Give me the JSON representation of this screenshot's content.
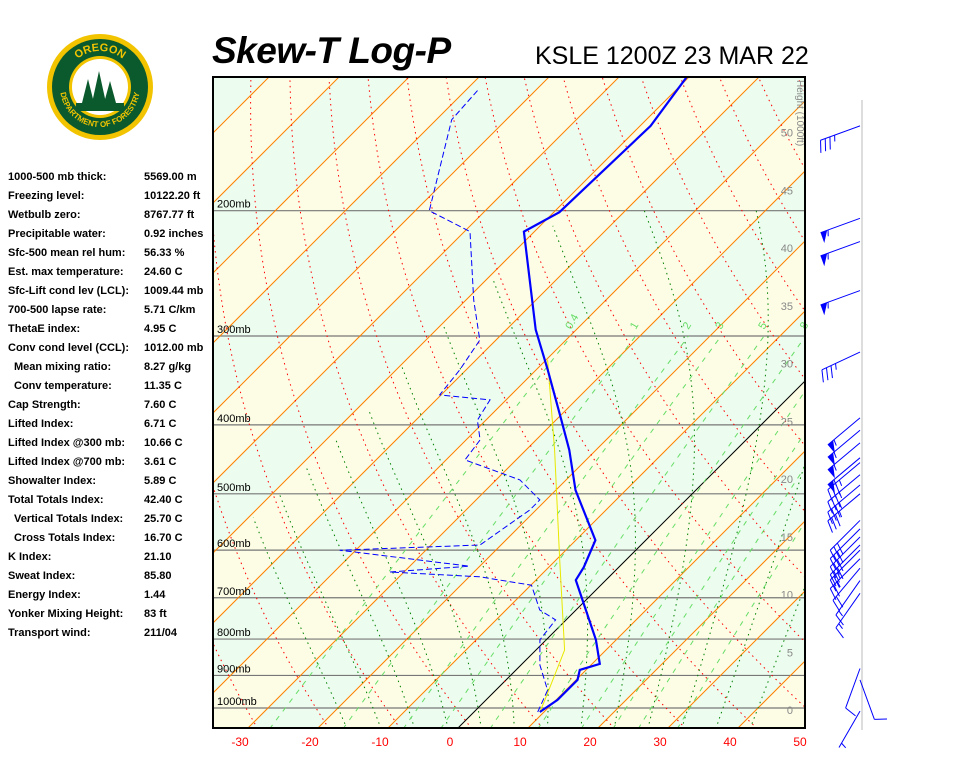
{
  "header": {
    "title": "Skew-T Log-P",
    "station": "KSLE 1200Z 23 MAR 22"
  },
  "logo": {
    "top_text": "OREGON",
    "bottom_text": "DEPARTMENT OF FORESTRY"
  },
  "stats": [
    {
      "label": "1000-500 mb thick:",
      "value": "5569.00 m"
    },
    {
      "label": "Freezing level:",
      "value": "10122.20 ft"
    },
    {
      "label": "Wetbulb zero:",
      "value": "8767.77 ft"
    },
    {
      "label": "Precipitable water:",
      "value": "0.92 inches"
    },
    {
      "label": "Sfc-500 mean rel hum:",
      "value": "56.33 %"
    },
    {
      "label": "Est. max temperature:",
      "value": "24.60 C"
    },
    {
      "label": "Sfc-Lift cond lev (LCL):",
      "value": "1009.44 mb"
    },
    {
      "label": "700-500 lapse rate:",
      "value": "5.71 C/km"
    },
    {
      "label": "ThetaE index:",
      "value": "4.95 C"
    },
    {
      "label": "Conv cond level (CCL):",
      "value": "1012.00 mb"
    },
    {
      "label": "Mean mixing ratio:",
      "value": "8.27 g/kg",
      "indent": true
    },
    {
      "label": "Conv temperature:",
      "value": "11.35 C",
      "indent": true
    },
    {
      "label": "Cap Strength:",
      "value": "7.60 C"
    },
    {
      "label": "Lifted Index:",
      "value": "6.71 C"
    },
    {
      "label": "Lifted Index @300 mb:",
      "value": "10.66 C"
    },
    {
      "label": "Lifted Index @700 mb:",
      "value": "3.61 C"
    },
    {
      "label": "Showalter Index:",
      "value": "5.89 C"
    },
    {
      "label": "Total Totals Index:",
      "value": "42.40 C"
    },
    {
      "label": "Vertical Totals Index:",
      "value": "25.70 C",
      "indent": true
    },
    {
      "label": "Cross Totals Index:",
      "value": "16.70 C",
      "indent": true
    },
    {
      "label": "K Index:",
      "value": "21.10"
    },
    {
      "label": "Sweat Index:",
      "value": "85.80"
    },
    {
      "label": "Energy Index:",
      "value": "1.44"
    },
    {
      "label": "Yonker Mixing Height:",
      "value": "83 ft"
    },
    {
      "label": "Transport wind:",
      "value": "211/04"
    }
  ],
  "chart_data": {
    "type": "skew-t",
    "pressure_levels": [
      1000,
      900,
      800,
      700,
      600,
      500,
      400,
      300,
      200
    ],
    "pressure_label_suffix": "mb",
    "pressure_range": [
      1067,
      130
    ],
    "temperature_ticks": [
      -30,
      -20,
      -10,
      0,
      10,
      20,
      30,
      40,
      50
    ],
    "height_axis_label": "Height (1000ft)",
    "height_ticks": [
      0,
      5,
      10,
      15,
      20,
      25,
      30,
      35,
      40,
      45,
      50
    ],
    "mixing_ratio_labels": [
      "0.4",
      "1",
      "2",
      "3",
      "5",
      "8"
    ],
    "series": {
      "temperature": [
        [
          1013,
          9.4
        ],
        [
          974,
          10.2
        ],
        [
          913,
          10.2
        ],
        [
          884,
          9.1
        ],
        [
          867,
          11.1
        ],
        [
          802,
          7.1
        ],
        [
          661,
          -4.3
        ],
        [
          634,
          -5.0
        ],
        [
          581,
          -7.2
        ],
        [
          494,
          -17.2
        ],
        [
          434,
          -23.8
        ],
        [
          394,
          -29.2
        ],
        [
          335,
          -38.3
        ],
        [
          294,
          -45.8
        ],
        [
          214,
          -61.5
        ],
        [
          201,
          -59.2
        ],
        [
          152,
          -58.5
        ],
        [
          130,
          -60.3
        ]
      ],
      "dewpoint": [
        [
          1013,
          9.1
        ],
        [
          944,
          7.4
        ],
        [
          870,
          2.7
        ],
        [
          802,
          -0.9
        ],
        [
          752,
          -1.5
        ],
        [
          728,
          -5.2
        ],
        [
          672,
          -9.9
        ],
        [
          654,
          -18.5
        ],
        [
          644,
          -32.0
        ],
        [
          632,
          -21.5
        ],
        [
          600,
          -42.3
        ],
        [
          590,
          -23.0
        ],
        [
          527,
          -20.9
        ],
        [
          510,
          -20.9
        ],
        [
          478,
          -26.6
        ],
        [
          448,
          -37.3
        ],
        [
          420,
          -38.0
        ],
        [
          394,
          -41.2
        ],
        [
          369,
          -42.3
        ],
        [
          363,
          -50.2
        ],
        [
          335,
          -50.9
        ],
        [
          304,
          -52.3
        ],
        [
          267,
          -58.9
        ],
        [
          214,
          -69.2
        ],
        [
          200,
          -78.0
        ],
        [
          149,
          -87.8
        ],
        [
          135,
          -88.3
        ]
      ],
      "parcel": [
        [
          1013,
          9.4
        ],
        [
          974,
          8.4
        ],
        [
          829,
          4.1
        ],
        [
          619,
          -9.5
        ],
        [
          434,
          -25.9
        ],
        [
          324,
          -39.8
        ]
      ]
    },
    "winds": [
      [
        152,
        250,
        35
      ],
      [
        205,
        250,
        55
      ],
      [
        221,
        250,
        55
      ],
      [
        259,
        250,
        55
      ],
      [
        316,
        245,
        35
      ],
      [
        391,
        230,
        55
      ],
      [
        407,
        230,
        55
      ],
      [
        424,
        230,
        55
      ],
      [
        445,
        230,
        55
      ],
      [
        452,
        230,
        35
      ],
      [
        470,
        230,
        35
      ],
      [
        486,
        230,
        35
      ],
      [
        500,
        230,
        35
      ],
      [
        545,
        225,
        30
      ],
      [
        560,
        225,
        30
      ],
      [
        575,
        225,
        30
      ],
      [
        590,
        225,
        30
      ],
      [
        600,
        225,
        25
      ],
      [
        617,
        225,
        25
      ],
      [
        636,
        220,
        20
      ],
      [
        662,
        215,
        15
      ],
      [
        690,
        215,
        15
      ],
      [
        880,
        200,
        10
      ],
      [
        913,
        160,
        10
      ],
      [
        1010,
        210,
        5
      ]
    ],
    "colors": {
      "temperature": "#0000ff",
      "dewpoint": "#0000ff",
      "parcel": "#e8e800",
      "isotherm": "#ff8000",
      "zero_isotherm": "#000000",
      "dry_adiabat": "#ff0000",
      "moist_adiabat": "#008000",
      "mixing_ratio": "#66dd66",
      "band_a": "#fdfde6",
      "band_b": "#ecfcee",
      "temp_tick": "#ff0000",
      "wind": "#0000ff"
    }
  }
}
